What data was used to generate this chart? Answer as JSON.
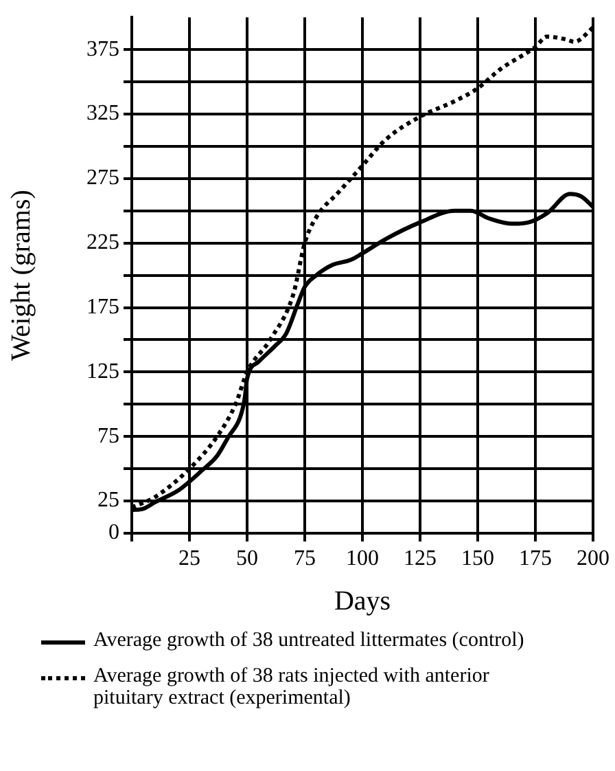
{
  "chart_data": {
    "type": "line",
    "xlabel": "Days",
    "ylabel": "Weight (grams)",
    "xlim": [
      0,
      200
    ],
    "ylim": [
      0,
      400
    ],
    "xticks": [
      {
        "value": 0,
        "label": null
      },
      25,
      50,
      75,
      100,
      125,
      150,
      175,
      200
    ],
    "yticks": [
      0,
      25,
      {
        "value": 50,
        "label": null
      },
      75,
      {
        "value": 100,
        "label": null
      },
      125,
      {
        "value": 150,
        "label": null
      },
      175,
      {
        "value": 200,
        "label": null
      },
      225,
      {
        "value": 250,
        "label": null
      },
      275,
      {
        "value": 300,
        "label": null
      },
      325,
      {
        "value": 350,
        "label": null
      },
      375
    ],
    "grid": true,
    "legend": "bottom",
    "series": [
      {
        "name": "Average growth of 38 untreated littermates (control)",
        "color": "#000000",
        "line_style": "solid",
        "x": [
          0,
          5,
          10,
          20,
          25,
          30,
          37,
          42,
          47,
          49,
          50,
          55,
          62,
          67,
          72,
          75,
          80,
          87,
          95,
          100,
          110,
          125,
          140,
          147,
          155,
          165,
          172,
          180,
          190,
          195,
          200
        ],
        "values": [
          18,
          19,
          24,
          33,
          40,
          48,
          60,
          75,
          90,
          105,
          120,
          133,
          145,
          155,
          178,
          191,
          200,
          208,
          212,
          217,
          228,
          241,
          250,
          250,
          244,
          240,
          241,
          248,
          263,
          261,
          253
        ]
      },
      {
        "name": "Average growth of 38 rats injected with anterior pituitary extract (experimental)",
        "color": "#000000",
        "line_style": "dotted",
        "x": [
          0,
          10,
          25,
          37,
          45,
          50,
          60,
          70,
          75,
          80,
          90,
          100,
          110,
          125,
          140,
          150,
          160,
          175,
          180,
          188,
          192,
          200
        ],
        "values": [
          20,
          28,
          50,
          75,
          100,
          125,
          150,
          185,
          225,
          245,
          265,
          285,
          305,
          323,
          335,
          345,
          360,
          377,
          385,
          383,
          381,
          392
        ]
      }
    ]
  }
}
